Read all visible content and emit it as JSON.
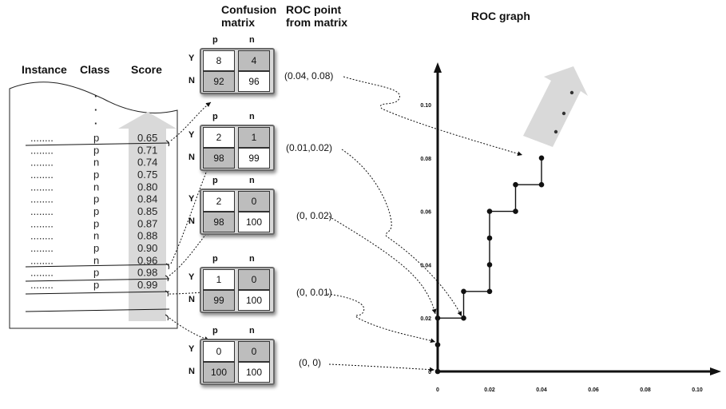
{
  "headers": {
    "instance": "Instance",
    "class": "Class",
    "score": "Score",
    "confusion_line1": "Confusion",
    "confusion_line2": "matrix",
    "roc_point_line1": "ROC point",
    "roc_point_line2": "from matrix",
    "roc_graph": "ROC graph"
  },
  "list": {
    "dots": [
      "·",
      "·",
      "·"
    ],
    "rows": [
      {
        "instance": "........",
        "class": "p",
        "score": "0.65"
      },
      {
        "instance": "........",
        "class": "p",
        "score": "0.71"
      },
      {
        "instance": "........",
        "class": "n",
        "score": "0.74"
      },
      {
        "instance": "........",
        "class": "p",
        "score": "0.75"
      },
      {
        "instance": "........",
        "class": "n",
        "score": "0.80"
      },
      {
        "instance": "........",
        "class": "p",
        "score": "0.84"
      },
      {
        "instance": "........",
        "class": "p",
        "score": "0.85"
      },
      {
        "instance": "........",
        "class": "p",
        "score": "0.87"
      },
      {
        "instance": "........",
        "class": "n",
        "score": "0.88"
      },
      {
        "instance": "........",
        "class": "p",
        "score": "0.90"
      },
      {
        "instance": "........",
        "class": "n",
        "score": "0.96"
      },
      {
        "instance": "........",
        "class": "p",
        "score": "0.98"
      },
      {
        "instance": "........",
        "class": "p",
        "score": "0.99"
      }
    ]
  },
  "matrices": [
    {
      "col_p": "p",
      "col_n": "n",
      "row_y": "Y",
      "row_n": "N",
      "tp": "8",
      "fp": "4",
      "fn": "92",
      "tn": "96",
      "roc_point": "(0.04, 0.08)"
    },
    {
      "col_p": "p",
      "col_n": "n",
      "row_y": "Y",
      "row_n": "N",
      "tp": "2",
      "fp": "1",
      "fn": "98",
      "tn": "99",
      "roc_point": "(0.01,0.02)"
    },
    {
      "col_p": "p",
      "col_n": "n",
      "row_y": "Y",
      "row_n": "N",
      "tp": "2",
      "fp": "0",
      "fn": "98",
      "tn": "100",
      "roc_point": "(0, 0.02)"
    },
    {
      "col_p": "p",
      "col_n": "n",
      "row_y": "Y",
      "row_n": "N",
      "tp": "1",
      "fp": "0",
      "fn": "99",
      "tn": "100",
      "roc_point": "(0, 0.01)"
    },
    {
      "col_p": "p",
      "col_n": "n",
      "row_y": "Y",
      "row_n": "N",
      "tp": "0",
      "fp": "0",
      "fn": "100",
      "tn": "100",
      "roc_point": "(0, 0)"
    }
  ],
  "roc_graph": {
    "x_ticks": [
      "0",
      "0.02",
      "0.04",
      "0.06",
      "0.08",
      "0.10"
    ],
    "y_ticks": [
      "0",
      "0.02",
      "0.04",
      "0.06",
      "0.08",
      "0.10"
    ],
    "curve_points": [
      [
        0,
        0
      ],
      [
        0,
        0.01
      ],
      [
        0,
        0.02
      ],
      [
        0.01,
        0.02
      ],
      [
        0.01,
        0.03
      ],
      [
        0.02,
        0.03
      ],
      [
        0.02,
        0.04
      ],
      [
        0.02,
        0.05
      ],
      [
        0.02,
        0.06
      ],
      [
        0.03,
        0.06
      ],
      [
        0.03,
        0.07
      ],
      [
        0.04,
        0.07
      ],
      [
        0.04,
        0.08
      ]
    ]
  },
  "colors": {
    "arrow_fill": "#d9d9d9",
    "cell_gray": "#bdbdbd",
    "line": "#111111"
  }
}
